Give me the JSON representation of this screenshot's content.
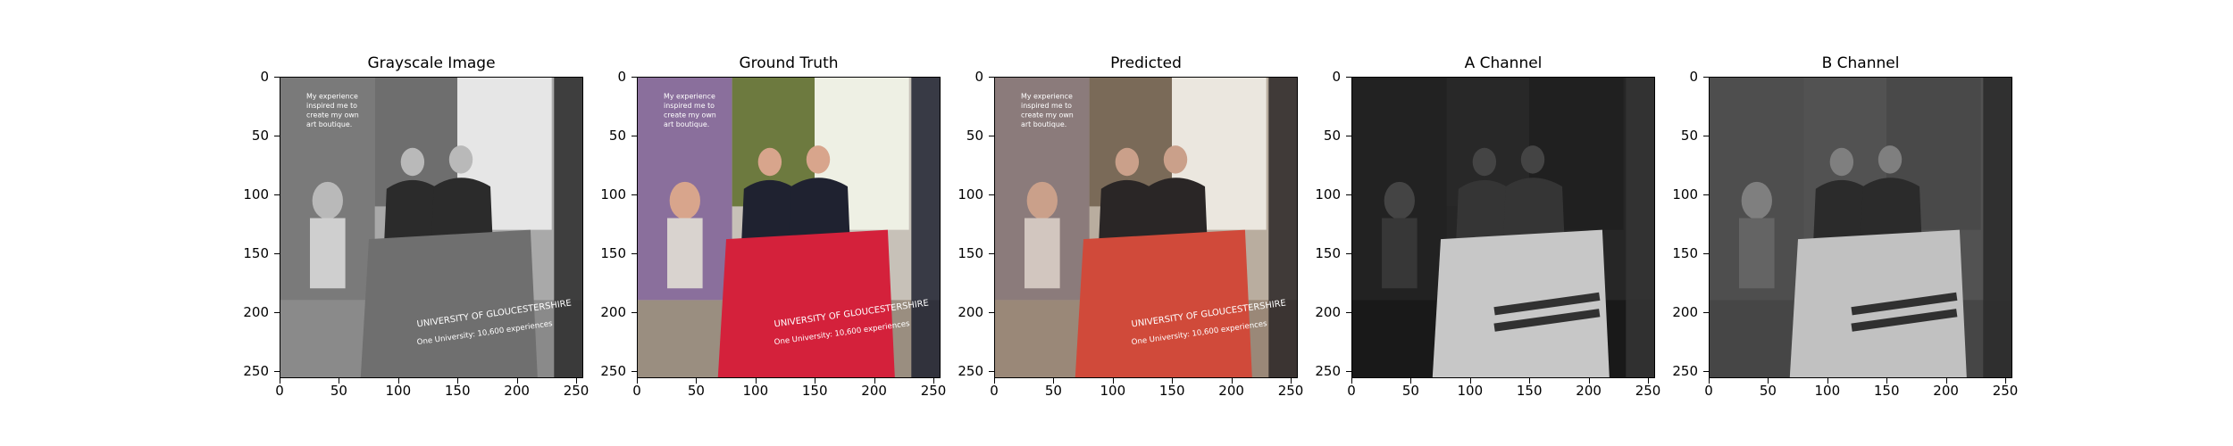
{
  "figure": {
    "panels": [
      {
        "title": "Grayscale Image",
        "kind": "grayscale"
      },
      {
        "title": "Ground Truth",
        "kind": "color"
      },
      {
        "title": "Predicted",
        "kind": "predicted"
      },
      {
        "title": "A Channel",
        "kind": "channel-a"
      },
      {
        "title": "B Channel",
        "kind": "channel-b"
      }
    ],
    "y_ticks": [
      "0",
      "50",
      "100",
      "150",
      "200",
      "250"
    ],
    "x_ticks": [
      "0",
      "50",
      "100",
      "150",
      "200",
      "250"
    ],
    "axis_max": 256
  },
  "photo_text": {
    "tablecloth_line1": "UNIVERSITY OF GLOUCESTERSHIRE",
    "tablecloth_line2": "One University: 10,600 experiences",
    "banner_line1": "My experience",
    "banner_line2": "inspired me to",
    "banner_line3": "create my own",
    "banner_line4": "art boutique."
  },
  "colors": {
    "tablecloth_truth": "#d4213b",
    "tablecloth_predicted": "#d04a3a",
    "banner_purple": "#8a6f9c",
    "painting_green": "#6d7a3f"
  }
}
